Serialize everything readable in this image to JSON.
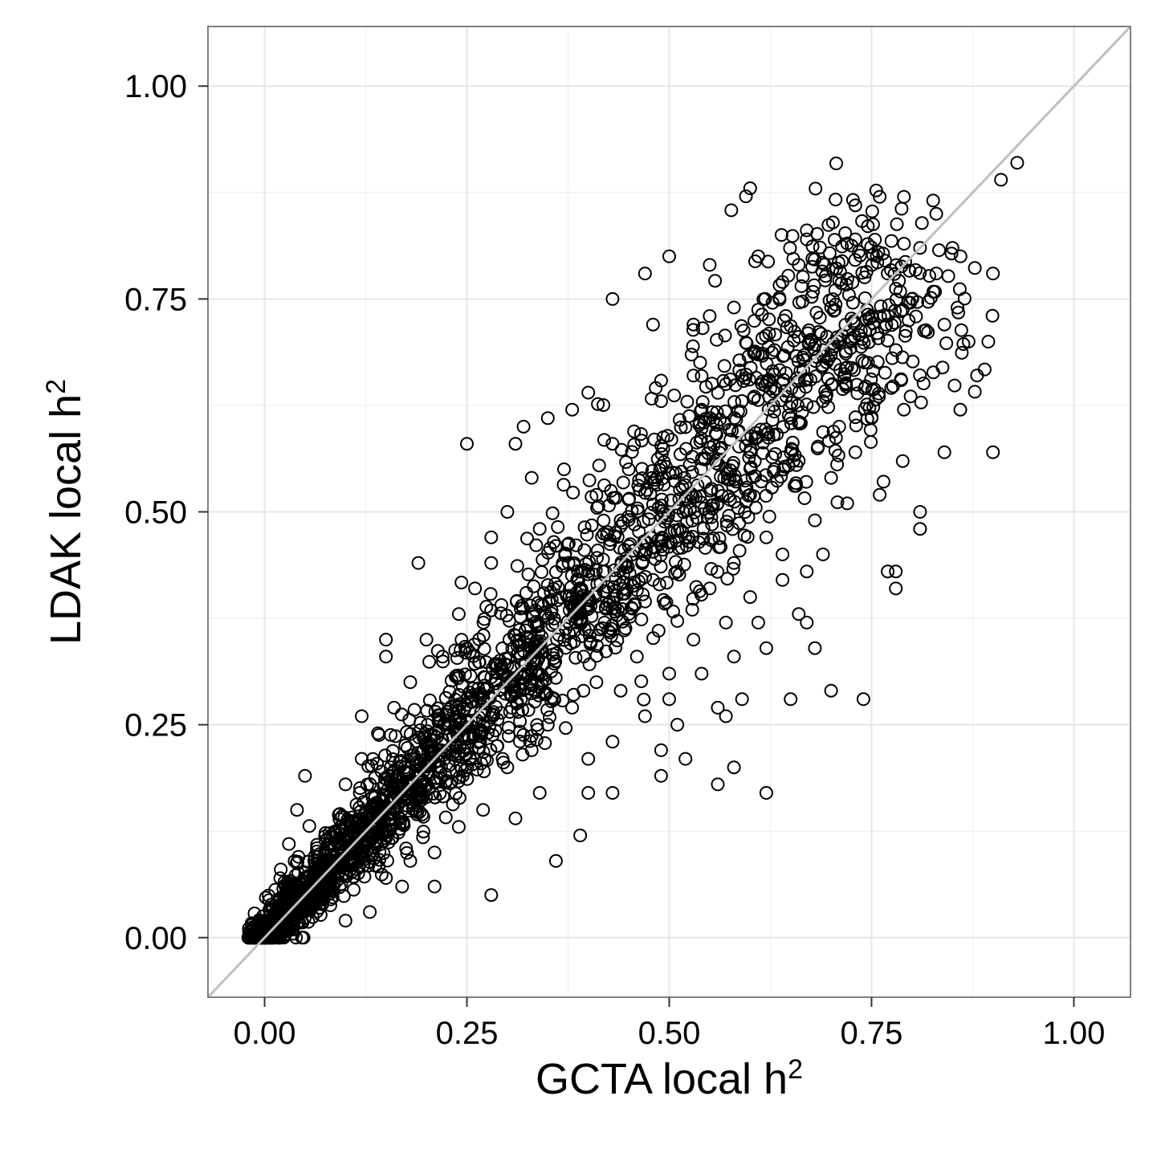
{
  "colors": {
    "background": "#ffffff",
    "grid_major": "#e6e6e6",
    "grid_minor": "#f2f2f2",
    "panel_border": "#7f7f7f",
    "points": "#000000",
    "identity_line": "#bfbfbf",
    "tick": "#333333"
  },
  "chart_data": {
    "type": "scatter",
    "title": "",
    "xlabel": "GCTA local h",
    "xlabel_superscript": "2",
    "ylabel": "LDAK local h",
    "ylabel_superscript": "2",
    "xlim": [
      -0.07,
      1.07
    ],
    "ylim": [
      -0.07,
      1.07
    ],
    "grid": true,
    "legend": "none",
    "x_ticks": [
      0.0,
      0.25,
      0.5,
      0.75,
      1.0
    ],
    "x_tick_labels": [
      "0.00",
      "0.25",
      "0.50",
      "0.75",
      "1.00"
    ],
    "y_ticks": [
      0.0,
      0.25,
      0.5,
      0.75,
      1.0
    ],
    "y_tick_labels": [
      "0.00",
      "0.25",
      "0.50",
      "0.75",
      "1.00"
    ],
    "marker": "open-circle",
    "reference_line": {
      "type": "identity",
      "slope": 1,
      "intercept": 0
    },
    "points": [
      [
        0.93,
        0.91
      ],
      [
        0.91,
        0.89
      ],
      [
        0.6,
        0.88
      ],
      [
        0.73,
        0.86
      ],
      [
        0.76,
        0.87
      ],
      [
        0.79,
        0.87
      ],
      [
        0.83,
        0.85
      ],
      [
        0.9,
        0.78
      ],
      [
        0.86,
        0.8
      ],
      [
        0.85,
        0.81
      ],
      [
        0.83,
        0.78
      ],
      [
        0.81,
        0.81
      ],
      [
        0.77,
        0.78
      ],
      [
        0.73,
        0.82
      ],
      [
        0.67,
        0.82
      ],
      [
        0.55,
        0.79
      ],
      [
        0.5,
        0.8
      ],
      [
        0.47,
        0.78
      ],
      [
        0.43,
        0.75
      ],
      [
        0.61,
        0.8
      ],
      [
        0.66,
        0.79
      ],
      [
        0.87,
        0.7
      ],
      [
        0.84,
        0.72
      ],
      [
        0.8,
        0.75
      ],
      [
        0.78,
        0.69
      ],
      [
        0.75,
        0.73
      ],
      [
        0.7,
        0.74
      ],
      [
        0.64,
        0.77
      ],
      [
        0.58,
        0.74
      ],
      [
        0.55,
        0.73
      ],
      [
        0.53,
        0.72
      ],
      [
        0.48,
        0.72
      ],
      [
        0.4,
        0.64
      ],
      [
        0.38,
        0.62
      ],
      [
        0.84,
        0.57
      ],
      [
        0.9,
        0.57
      ],
      [
        0.81,
        0.5
      ],
      [
        0.81,
        0.48
      ],
      [
        0.77,
        0.43
      ],
      [
        0.78,
        0.43
      ],
      [
        0.78,
        0.41
      ],
      [
        0.72,
        0.51
      ],
      [
        0.76,
        0.52
      ],
      [
        0.69,
        0.45
      ],
      [
        0.67,
        0.43
      ],
      [
        0.66,
        0.38
      ],
      [
        0.67,
        0.37
      ],
      [
        0.68,
        0.34
      ],
      [
        0.7,
        0.29
      ],
      [
        0.74,
        0.28
      ],
      [
        0.62,
        0.34
      ],
      [
        0.61,
        0.37
      ],
      [
        0.58,
        0.33
      ],
      [
        0.56,
        0.27
      ],
      [
        0.57,
        0.26
      ],
      [
        0.59,
        0.28
      ],
      [
        0.65,
        0.28
      ],
      [
        0.62,
        0.17
      ],
      [
        0.58,
        0.2
      ],
      [
        0.56,
        0.18
      ],
      [
        0.52,
        0.21
      ],
      [
        0.51,
        0.25
      ],
      [
        0.49,
        0.19
      ],
      [
        0.49,
        0.22
      ],
      [
        0.43,
        0.17
      ],
      [
        0.4,
        0.17
      ],
      [
        0.39,
        0.12
      ],
      [
        0.36,
        0.09
      ],
      [
        0.28,
        0.05
      ],
      [
        0.21,
        0.06
      ],
      [
        0.19,
        0.44
      ],
      [
        0.25,
        0.58
      ],
      [
        0.28,
        0.44
      ],
      [
        0.31,
        0.58
      ],
      [
        0.33,
        0.54
      ],
      [
        0.32,
        0.6
      ],
      [
        0.35,
        0.61
      ],
      [
        0.37,
        0.55
      ],
      [
        0.15,
        0.35
      ],
      [
        0.15,
        0.33
      ],
      [
        0.12,
        0.26
      ],
      [
        0.1,
        0.18
      ],
      [
        0.05,
        0.19
      ],
      [
        0.03,
        0.11
      ],
      [
        0.02,
        0.08
      ],
      [
        0.04,
        0.15
      ],
      [
        0.1,
        0.02
      ],
      [
        0.13,
        0.03
      ],
      [
        0.17,
        0.06
      ],
      [
        0.54,
        0.62
      ],
      [
        0.57,
        0.65
      ],
      [
        0.6,
        0.57
      ],
      [
        0.63,
        0.55
      ],
      [
        0.65,
        0.61
      ],
      [
        0.69,
        0.63
      ],
      [
        0.71,
        0.6
      ],
      [
        0.73,
        0.57
      ],
      [
        0.75,
        0.61
      ],
      [
        0.79,
        0.62
      ],
      [
        0.72,
        0.67
      ],
      [
        0.69,
        0.69
      ],
      [
        0.63,
        0.69
      ],
      [
        0.59,
        0.66
      ],
      [
        0.53,
        0.66
      ],
      [
        0.49,
        0.63
      ],
      [
        0.45,
        0.55
      ],
      [
        0.43,
        0.58
      ],
      [
        0.41,
        0.52
      ],
      [
        0.44,
        0.49
      ],
      [
        0.47,
        0.45
      ],
      [
        0.51,
        0.43
      ],
      [
        0.55,
        0.41
      ],
      [
        0.58,
        0.44
      ],
      [
        0.62,
        0.47
      ],
      [
        0.64,
        0.42
      ],
      [
        0.53,
        0.35
      ],
      [
        0.5,
        0.31
      ],
      [
        0.46,
        0.33
      ],
      [
        0.44,
        0.29
      ],
      [
        0.42,
        0.37
      ],
      [
        0.38,
        0.4
      ],
      [
        0.36,
        0.46
      ],
      [
        0.34,
        0.48
      ],
      [
        0.3,
        0.5
      ],
      [
        0.28,
        0.47
      ],
      [
        0.26,
        0.41
      ],
      [
        0.24,
        0.38
      ],
      [
        0.22,
        0.33
      ],
      [
        0.2,
        0.35
      ],
      [
        0.18,
        0.3
      ],
      [
        0.16,
        0.27
      ],
      [
        0.14,
        0.24
      ],
      [
        0.12,
        0.21
      ],
      [
        0.3,
        0.2
      ],
      [
        0.33,
        0.22
      ],
      [
        0.35,
        0.25
      ],
      [
        0.38,
        0.27
      ],
      [
        0.41,
        0.3
      ],
      [
        0.27,
        0.15
      ],
      [
        0.24,
        0.13
      ],
      [
        0.21,
        0.1
      ],
      [
        0.18,
        0.09
      ],
      [
        0.15,
        0.07
      ],
      [
        0.31,
        0.14
      ],
      [
        0.34,
        0.17
      ],
      [
        0.45,
        0.38
      ],
      [
        0.48,
        0.42
      ],
      [
        0.52,
        0.47
      ],
      [
        0.56,
        0.51
      ],
      [
        0.6,
        0.52
      ],
      [
        0.66,
        0.56
      ],
      [
        0.7,
        0.54
      ],
      [
        0.68,
        0.49
      ],
      [
        0.64,
        0.45
      ],
      [
        0.6,
        0.4
      ],
      [
        0.57,
        0.37
      ],
      [
        0.54,
        0.31
      ],
      [
        0.5,
        0.28
      ],
      [
        0.47,
        0.26
      ],
      [
        0.43,
        0.23
      ],
      [
        0.4,
        0.21
      ]
    ]
  }
}
